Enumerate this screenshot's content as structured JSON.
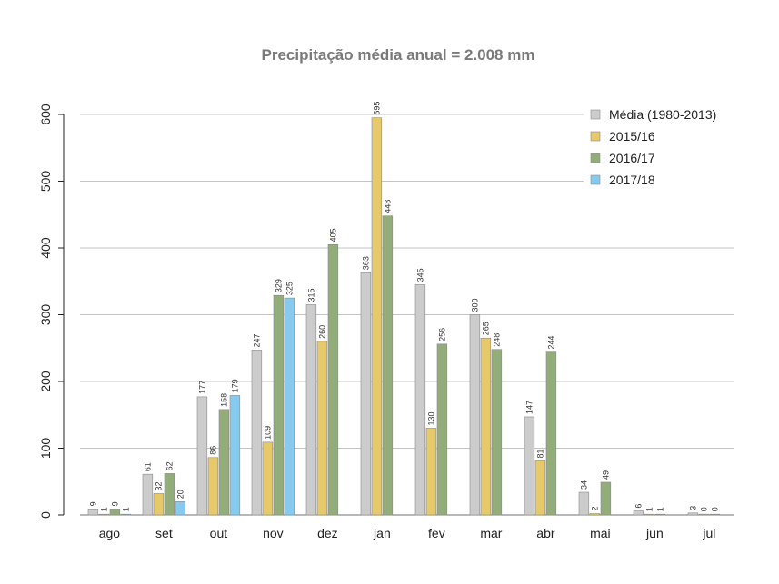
{
  "chart_data": {
    "type": "bar",
    "title": "Precipitação média anual = 2.008 mm",
    "xlabel": "",
    "ylabel": "",
    "ylim": [
      0,
      600
    ],
    "yticks": [
      0,
      100,
      200,
      300,
      400,
      500,
      600
    ],
    "grid": true,
    "legend_position": "top-right",
    "categories": [
      "ago",
      "set",
      "out",
      "nov",
      "dez",
      "jan",
      "fev",
      "mar",
      "abr",
      "mai",
      "jun",
      "jul"
    ],
    "series": [
      {
        "name": "Média (1980-2013)",
        "color": "#cccccc",
        "values": [
          9,
          61,
          177,
          247,
          315,
          363,
          345,
          300,
          147,
          34,
          6,
          3
        ]
      },
      {
        "name": "2015/16",
        "color": "#e6c96b",
        "values": [
          1,
          32,
          86,
          109,
          260,
          595,
          130,
          265,
          81,
          2,
          1,
          0
        ]
      },
      {
        "name": "2016/17",
        "color": "#93ad7a",
        "values": [
          9,
          62,
          158,
          329,
          405,
          448,
          256,
          248,
          244,
          49,
          1,
          0
        ]
      },
      {
        "name": "2017/18",
        "color": "#86cbef",
        "values": [
          1,
          20,
          179,
          325,
          null,
          null,
          null,
          null,
          null,
          null,
          null,
          null
        ]
      }
    ]
  }
}
